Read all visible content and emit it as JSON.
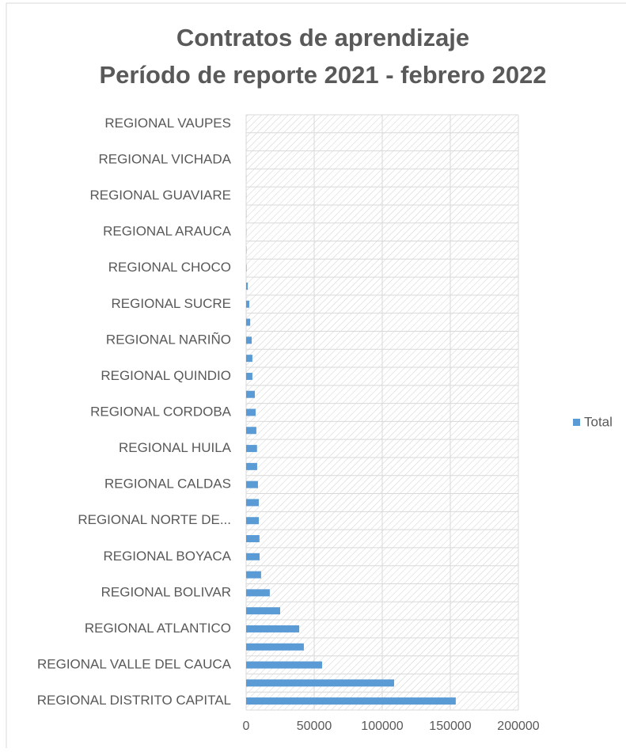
{
  "chart_data": {
    "type": "bar",
    "orientation": "horizontal",
    "title": "Contratos de aprendizaje",
    "subtitle": "Período de reporte 2021 - febrero 2022",
    "categories": [
      "REGIONAL DISTRITO CAPITAL",
      null,
      "REGIONAL VALLE DEL CAUCA",
      null,
      "REGIONAL ATLANTICO",
      null,
      "REGIONAL BOLIVAR",
      null,
      "REGIONAL BOYACA",
      null,
      "REGIONAL NORTE DE...",
      null,
      "REGIONAL CALDAS",
      null,
      "REGIONAL HUILA",
      null,
      "REGIONAL CORDOBA",
      null,
      "REGIONAL QUINDIO",
      null,
      "REGIONAL NARIÑO",
      null,
      "REGIONAL SUCRE",
      null,
      "REGIONAL CHOCO",
      null,
      "REGIONAL ARAUCA",
      null,
      "REGIONAL GUAVIARE",
      null,
      "REGIONAL VICHADA",
      null,
      "REGIONAL VAUPES"
    ],
    "series": [
      {
        "name": "Total",
        "color": "#5b9bd5",
        "values": [
          154000,
          108700,
          55800,
          42400,
          39000,
          25000,
          17400,
          11000,
          9900,
          9800,
          9300,
          9300,
          8700,
          8100,
          8000,
          7500,
          7000,
          6400,
          4600,
          4600,
          4100,
          3000,
          2300,
          1200,
          300,
          200,
          150,
          120,
          100,
          80,
          60,
          40,
          20
        ]
      }
    ],
    "xlim": [
      0,
      200000
    ],
    "xticks": [
      0,
      50000,
      100000,
      150000,
      200000
    ],
    "grid": true,
    "legend": "right"
  }
}
